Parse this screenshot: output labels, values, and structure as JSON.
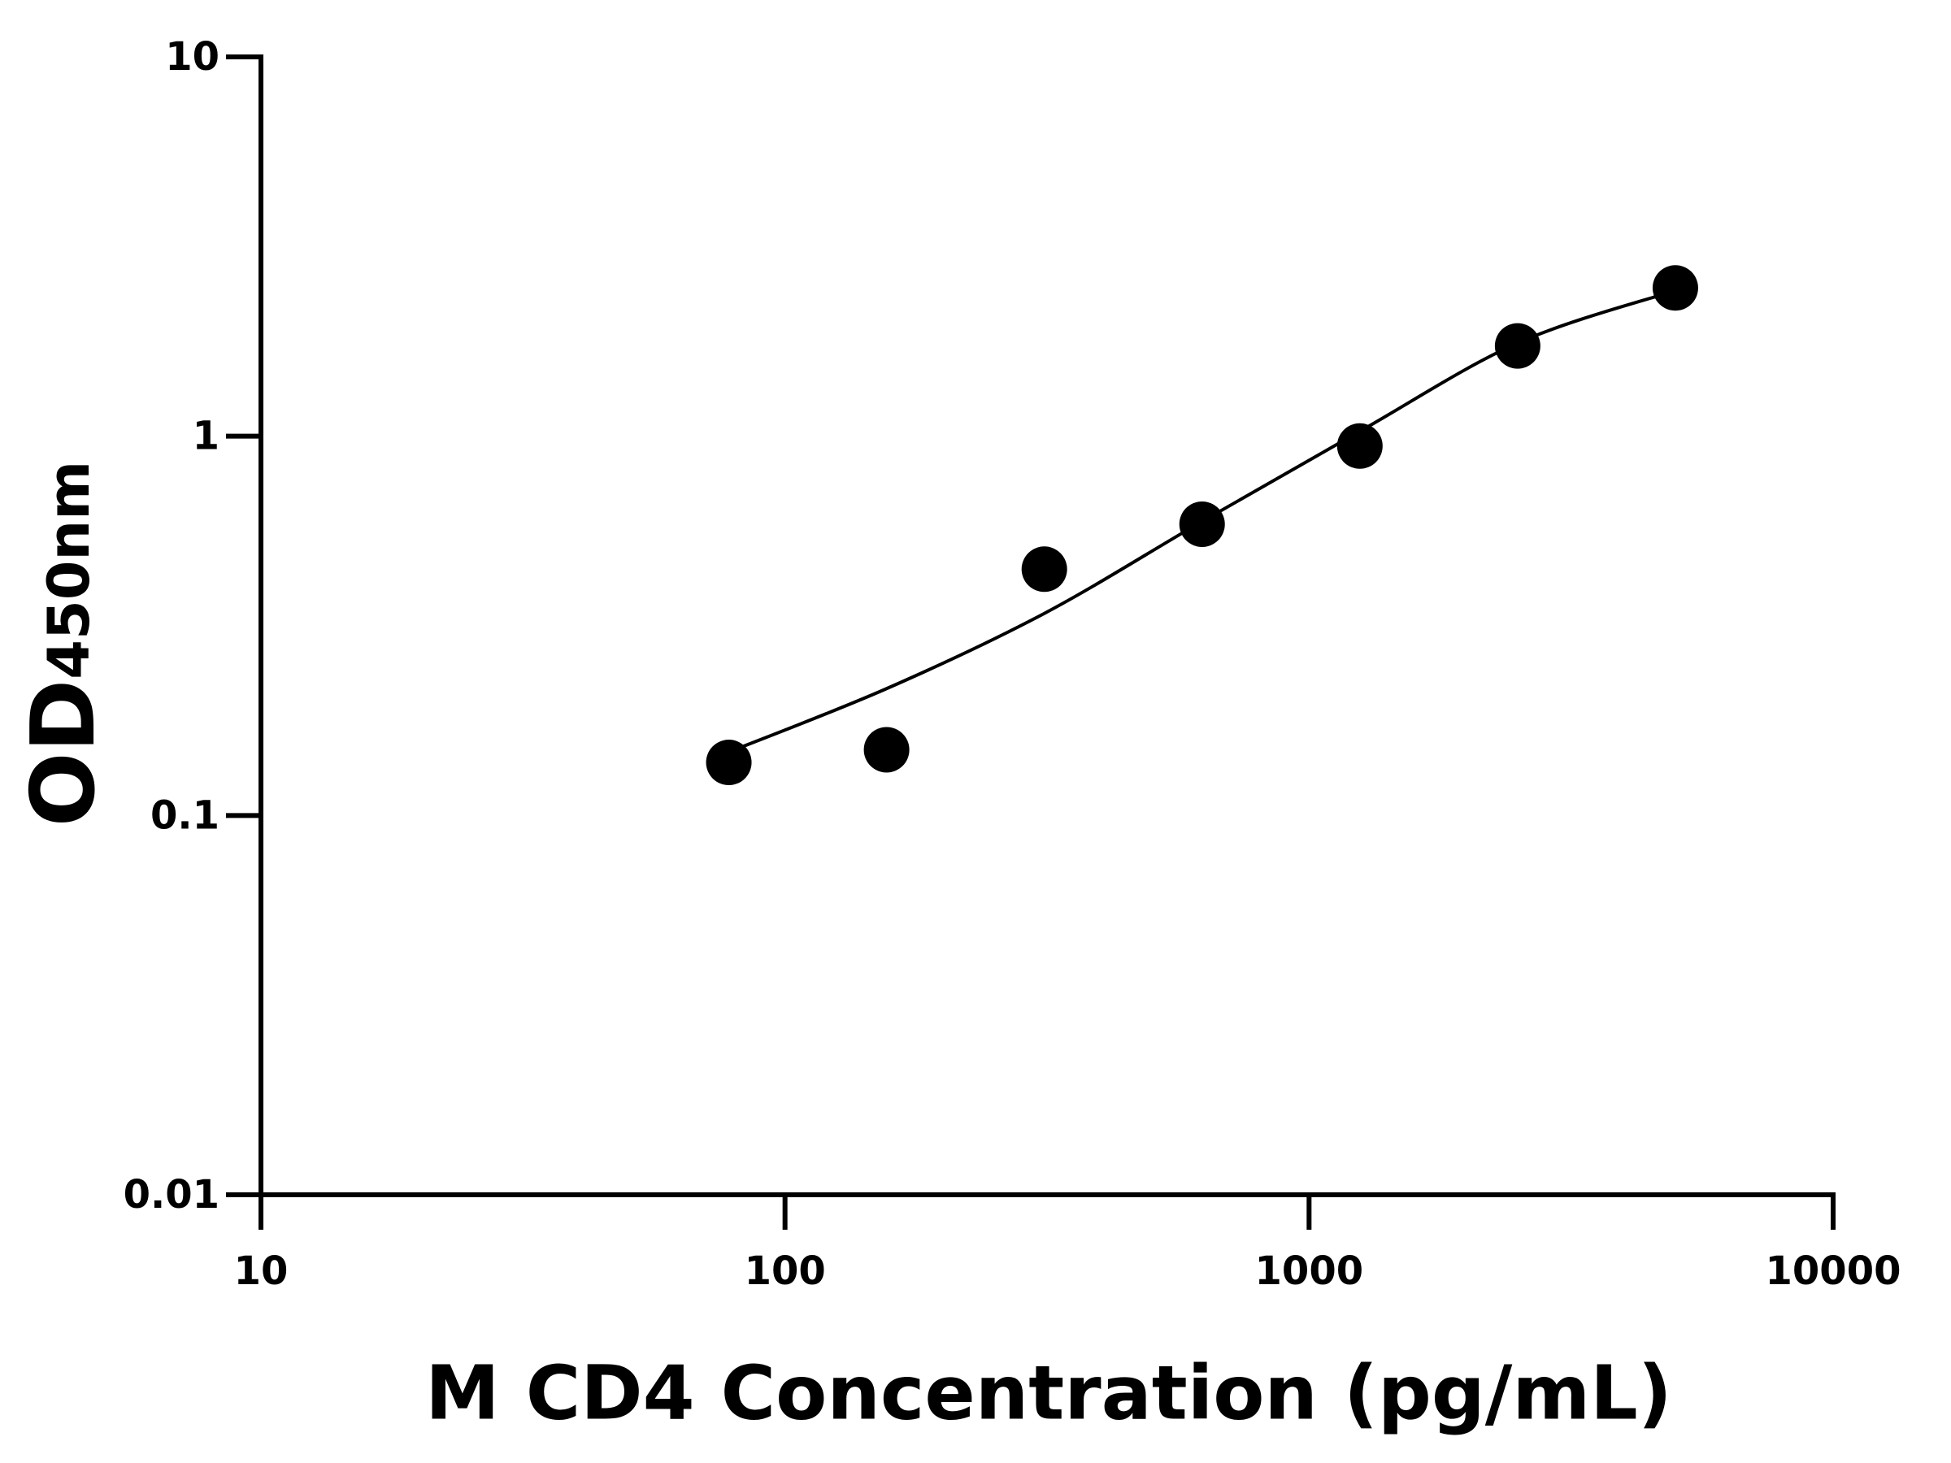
{
  "chart_data": {
    "type": "scatter",
    "x_label": "M CD4 Concentration (pg/mL)",
    "y_label": "OD",
    "y_label_subscript": "450nm",
    "xscale": "log",
    "yscale": "log",
    "xlim": [
      10,
      10000
    ],
    "xticks": [
      10,
      100,
      1000,
      10000
    ],
    "ylim": [
      0.01,
      10
    ],
    "yticks": [
      0.01,
      0.1,
      1,
      10
    ],
    "color": "#000000",
    "points": {
      "x": [
        78.125,
        156.25,
        312.5,
        625,
        1250,
        2500,
        5000
      ],
      "y": [
        0.138,
        0.149,
        0.446,
        0.586,
        0.942,
        1.73,
        2.46
      ]
    },
    "fit": {
      "x": [
        78.125,
        156.25,
        312.5,
        625,
        1250,
        2500,
        5000
      ],
      "y": [
        0.147,
        0.216,
        0.341,
        0.596,
        1.03,
        1.76,
        2.42
      ]
    }
  }
}
